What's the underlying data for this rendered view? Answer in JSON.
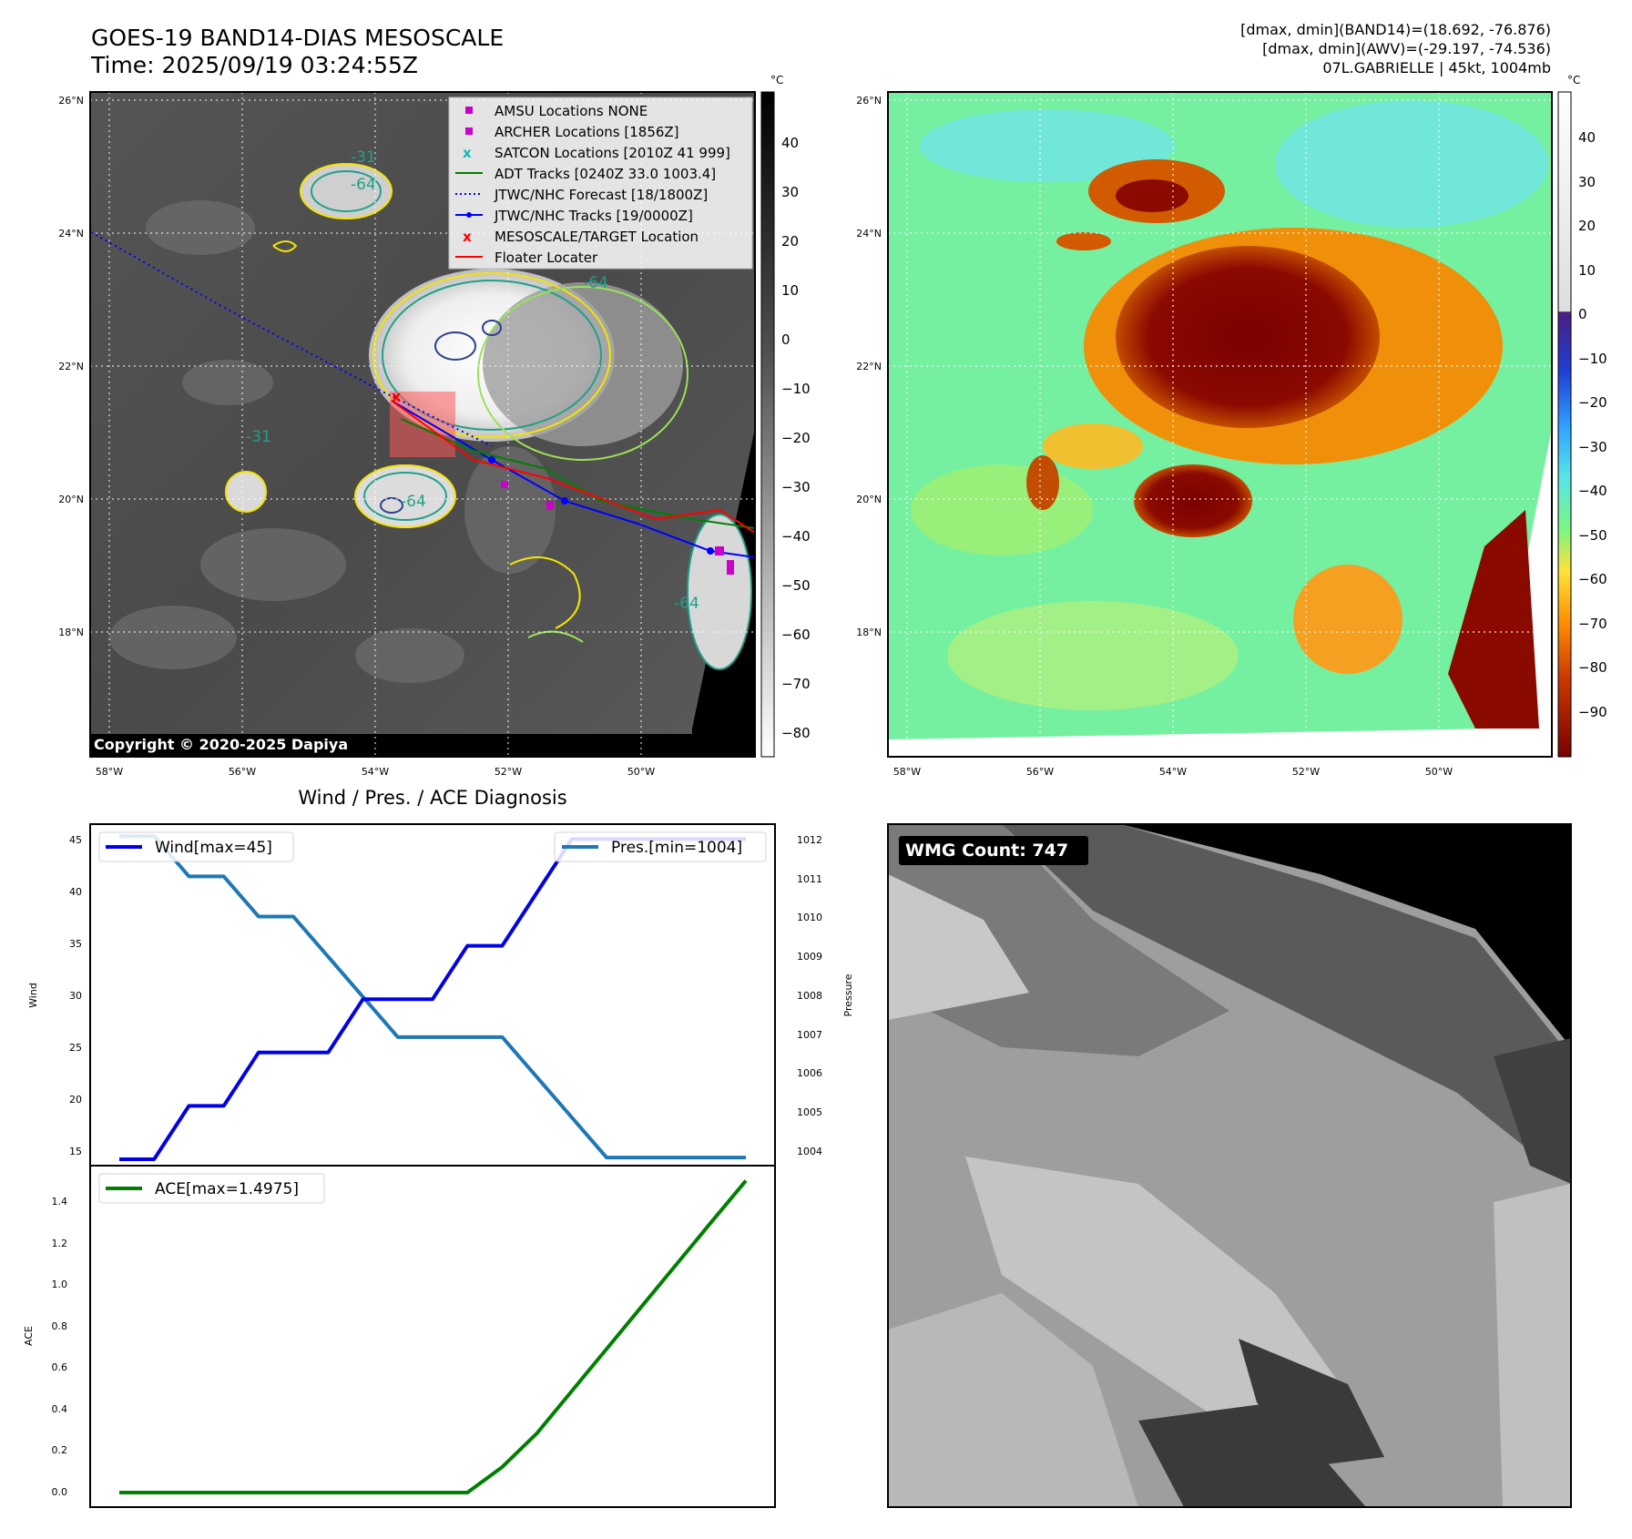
{
  "header": {
    "title_line1": "GOES-19 BAND14-DIAS MESOSCALE",
    "title_line2": "Time: 2025/09/19 03:24:55Z",
    "info_line1": "[dmax, dmin](BAND14)=(18.692, -76.876)",
    "info_line2": "[dmax, dmin](AWV)=(-29.197, -74.536)",
    "info_line3": "07L.GABRIELLE | 45kt, 1004mb"
  },
  "map_common": {
    "lat_labels": [
      "26°N",
      "24°N",
      "22°N",
      "20°N",
      "18°N"
    ],
    "lon_labels": [
      "58°W",
      "56°W",
      "54°W",
      "52°W",
      "50°W"
    ]
  },
  "ir_map": {
    "copyright": "Copyright © 2020-2025 Dapiya",
    "contour_labels": [
      "-64",
      "-64",
      "-64",
      "-64",
      "-31",
      "-31",
      "-64",
      "-64"
    ],
    "colorbar": {
      "unit": "°C",
      "ticks": [
        "40",
        "30",
        "20",
        "10",
        "0",
        "−10",
        "−20",
        "−30",
        "−40",
        "−50",
        "−60",
        "−70",
        "−80"
      ]
    },
    "legend": [
      {
        "label": "AMSU Locations NONE",
        "marker": "square",
        "color": "#cc00cc"
      },
      {
        "label": "ARCHER Locations [1856Z]",
        "marker": "square",
        "color": "#cc00cc"
      },
      {
        "label": "SATCON Locations [2010Z 41 999]",
        "marker": "x",
        "color": "#19b3b3"
      },
      {
        "label": "ADT Tracks [0240Z 33.0 1003.4]",
        "marker": "line",
        "color": "#008000"
      },
      {
        "label": "JTWC/NHC Forecast [18/1800Z]",
        "marker": "dotted",
        "color": "#0000ff"
      },
      {
        "label": "JTWC/NHC Tracks [19/0000Z]",
        "marker": "line-dot",
        "color": "#0000ff"
      },
      {
        "label": "MESOSCALE/TARGET Location",
        "marker": "x",
        "color": "#ff0000"
      },
      {
        "label": "Floater Locater",
        "marker": "line",
        "color": "#ff0000"
      }
    ]
  },
  "awv_map": {
    "colorbar": {
      "unit": "°C",
      "ticks": [
        "40",
        "30",
        "20",
        "10",
        "0",
        "−10",
        "−20",
        "−30",
        "−40",
        "−50",
        "−60",
        "−70",
        "−80",
        "−90"
      ]
    }
  },
  "wmg": {
    "label": "WMG Count: 747"
  },
  "chart_data": [
    {
      "type": "line",
      "title": "Wind / Pres. / ACE Diagnosis",
      "x": [
        0,
        1,
        2,
        3,
        4,
        5,
        6,
        7,
        8,
        9,
        10,
        11,
        12,
        13,
        14,
        15,
        16,
        17,
        18
      ],
      "series": [
        {
          "name": "Wind[max=45]",
          "axis": "left",
          "color": "#0000ee",
          "values": [
            15,
            15,
            20,
            20,
            25,
            25,
            25,
            30,
            30,
            30,
            35,
            35,
            40,
            45,
            45,
            45,
            45,
            45,
            45
          ]
        },
        {
          "name": "Pres.[min=1004]",
          "axis": "right",
          "color": "#1f77b4",
          "values": [
            1012,
            1012,
            1011,
            1011,
            1010,
            1010,
            1009,
            1008,
            1007,
            1007,
            1007,
            1007,
            1006,
            1005,
            1004,
            1004,
            1004,
            1004,
            1004
          ]
        }
      ],
      "ylabel": "Wind",
      "y2label": "Pressure",
      "ylim": [
        14.4,
        46.4
      ],
      "y2lim": [
        1003.8,
        1012.3
      ],
      "yticks": [
        "45",
        "40",
        "35",
        "30",
        "25",
        "20",
        "15"
      ],
      "y2ticks": [
        "1012",
        "1011",
        "1010",
        "1009",
        "1008",
        "1007",
        "1006",
        "1005",
        "1004"
      ],
      "legend": [
        "top-left",
        "top-right"
      ]
    },
    {
      "type": "line",
      "x": [
        0,
        1,
        2,
        3,
        4,
        5,
        6,
        7,
        8,
        9,
        10,
        11,
        12,
        13,
        14,
        15,
        16,
        17,
        18
      ],
      "series": [
        {
          "name": "ACE[max=1.4975]",
          "color": "#008000",
          "values": [
            0,
            0,
            0,
            0,
            0,
            0,
            0,
            0,
            0,
            0,
            0,
            0.1225,
            0.285,
            0.4875,
            0.69,
            0.8925,
            1.095,
            1.2975,
            1.4975
          ]
        }
      ],
      "ylabel": "ACE",
      "ylim": [
        -0.07,
        1.57
      ],
      "yticks": [
        "1.4",
        "1.2",
        "1.0",
        "0.8",
        "0.6",
        "0.4",
        "0.2",
        "0.0"
      ],
      "legend": "top-left"
    }
  ]
}
